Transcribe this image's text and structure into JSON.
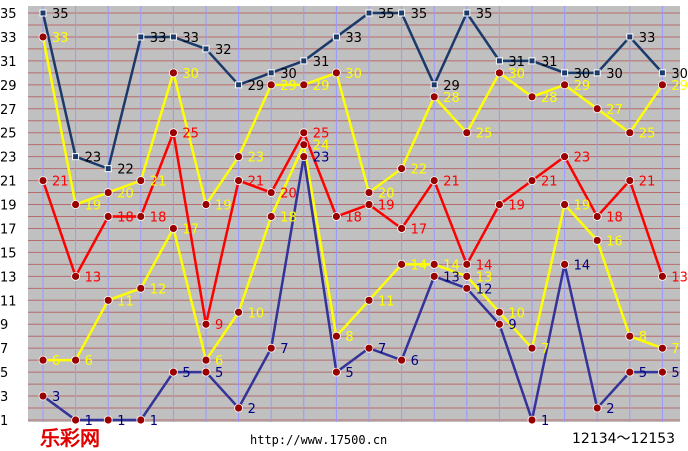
{
  "chart_data": {
    "type": "line",
    "x": [
      1,
      2,
      3,
      4,
      5,
      6,
      7,
      8,
      9,
      10,
      11,
      12,
      13,
      14,
      15,
      16,
      17,
      18,
      19,
      20
    ],
    "ylim": [
      1,
      35
    ],
    "yticks": [
      1,
      3,
      5,
      7,
      9,
      11,
      13,
      15,
      17,
      19,
      21,
      23,
      25,
      27,
      29,
      31,
      33,
      35
    ],
    "grid": true,
    "series": [
      {
        "color": "#1a3a6b",
        "values": [
          35,
          23,
          22,
          33,
          33,
          32,
          29,
          30,
          31,
          33,
          35,
          35,
          29,
          35,
          31,
          31,
          30,
          30,
          33,
          30
        ]
      },
      {
        "color": "#ffff00",
        "values": [
          33,
          19,
          20,
          21,
          30,
          19,
          23,
          29,
          29,
          30,
          20,
          22,
          28,
          25,
          30,
          28,
          29,
          27,
          25,
          29
        ]
      },
      {
        "color": "#ff0000",
        "values": [
          21,
          13,
          18,
          18,
          25,
          9,
          21,
          20,
          25,
          18,
          19,
          17,
          21,
          14,
          19,
          21,
          23,
          18,
          21,
          13
        ]
      },
      {
        "color": "#ffff00",
        "values": [
          6,
          6,
          11,
          12,
          17,
          6,
          10,
          18,
          24,
          8,
          11,
          14,
          14,
          13,
          10,
          7,
          19,
          16,
          8,
          7
        ]
      },
      {
        "color": "#333399",
        "values": [
          3,
          1,
          1,
          1,
          5,
          5,
          2,
          7,
          23,
          5,
          7,
          6,
          13,
          12,
          9,
          1,
          14,
          2,
          5,
          5
        ]
      }
    ],
    "label_colors": [
      "#000000",
      "#ffff00",
      "#ff0000",
      "#ffff00",
      "#000080"
    ]
  },
  "footer": {
    "logo": "乐彩网",
    "url": "http://www.17500.cn",
    "range": "12134～12153"
  },
  "colors": {
    "plot_bg": "#c0c0c0",
    "grid_h": "#b86b6b",
    "grid_v": "#9999ff",
    "marker_fill": "#990000"
  }
}
